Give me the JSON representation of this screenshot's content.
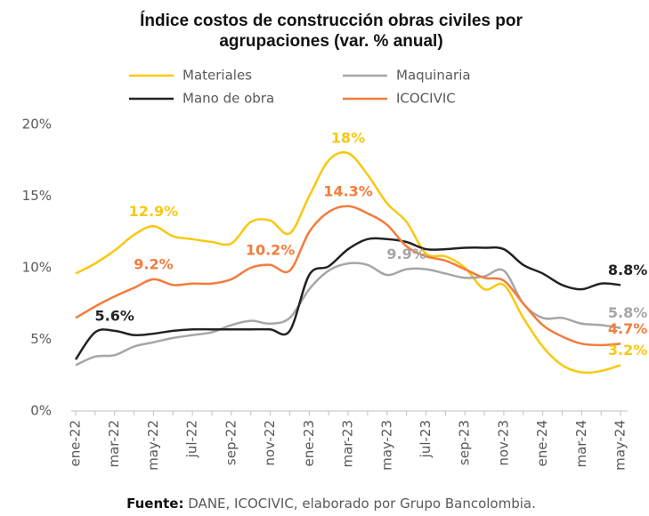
{
  "chart_data": {
    "type": "line",
    "title": [
      "Índice costos de construcción obras civiles por",
      "agrupaciones (var. % anual)"
    ],
    "categories": [
      "ene-22",
      null,
      "mar-22",
      null,
      "may-22",
      null,
      "jul-22",
      null,
      "sep-22",
      null,
      "nov-22",
      null,
      "ene-23",
      null,
      "mar-23",
      null,
      "may-23",
      null,
      "jul-23",
      null,
      "sep-23",
      null,
      "nov-23",
      null,
      "ene-24",
      null,
      "mar-24",
      null,
      "may-24"
    ],
    "series": [
      {
        "name": "Materiales",
        "color": "#f9c80e",
        "values": [
          9.6,
          10.3,
          11.2,
          12.3,
          12.9,
          12.2,
          12.0,
          11.8,
          11.7,
          13.2,
          13.3,
          12.4,
          15.0,
          17.5,
          18,
          16.5,
          14.5,
          13.2,
          11.0,
          10.8,
          10.0,
          8.5,
          8.8,
          6.5,
          4.5,
          3.2,
          2.7,
          2.8,
          3.2
        ],
        "value_labels": [
          null,
          null,
          null,
          null,
          "12.9%",
          null,
          null,
          null,
          null,
          null,
          null,
          null,
          null,
          null,
          "18%",
          null,
          null,
          null,
          null,
          null,
          null,
          null,
          null,
          null,
          null,
          null,
          null,
          null,
          "3.2%"
        ]
      },
      {
        "name": "Maquinaria",
        "color": "#a6a6a6",
        "values": [
          3.2,
          3.8,
          3.9,
          4.5,
          4.8,
          5.1,
          5.3,
          5.5,
          6.0,
          6.3,
          6.1,
          6.5,
          8.5,
          9.8,
          10.3,
          10.2,
          9.5,
          9.9,
          9.9,
          9.6,
          9.3,
          9.4,
          9.8,
          7.5,
          6.5,
          6.5,
          6.1,
          6.0,
          5.8
        ],
        "value_labels": [
          null,
          null,
          null,
          null,
          null,
          null,
          null,
          null,
          null,
          null,
          null,
          null,
          null,
          null,
          null,
          null,
          null,
          "9.9%",
          null,
          null,
          null,
          null,
          null,
          null,
          null,
          null,
          null,
          null,
          "5.8%"
        ]
      },
      {
        "name": "Mano de obra",
        "color": "#222222",
        "values": [
          3.6,
          5.5,
          5.6,
          5.3,
          5.4,
          5.6,
          5.7,
          5.7,
          5.7,
          5.7,
          5.7,
          5.6,
          9.5,
          10.1,
          11.3,
          12.0,
          12.0,
          11.8,
          11.3,
          11.3,
          11.4,
          11.4,
          11.3,
          10.2,
          9.6,
          8.8,
          8.5,
          8.9,
          8.8
        ],
        "value_labels": [
          null,
          null,
          "5.6%",
          null,
          null,
          null,
          null,
          null,
          null,
          null,
          null,
          null,
          null,
          null,
          null,
          null,
          null,
          null,
          null,
          null,
          null,
          null,
          null,
          null,
          null,
          null,
          null,
          null,
          "8.8%"
        ]
      },
      {
        "name": "ICOCIVIC",
        "color": "#f47c3c",
        "values": [
          6.5,
          7.3,
          8.0,
          8.6,
          9.2,
          8.8,
          8.9,
          8.9,
          9.2,
          10.0,
          10.2,
          9.8,
          12.5,
          13.9,
          14.3,
          13.8,
          13.0,
          11.5,
          10.8,
          10.5,
          9.9,
          9.3,
          9.1,
          7.5,
          6.0,
          5.2,
          4.7,
          4.6,
          4.7
        ],
        "value_labels": [
          null,
          null,
          null,
          null,
          "9.2%",
          null,
          null,
          null,
          null,
          null,
          "10.2%",
          null,
          null,
          null,
          "14.3%",
          null,
          null,
          null,
          null,
          null,
          null,
          null,
          null,
          null,
          null,
          null,
          null,
          null,
          "4.7%"
        ]
      }
    ],
    "ylim": [
      0,
      20
    ],
    "yticks": [
      {
        "value": 0,
        "label": "0%"
      },
      {
        "value": 5,
        "label": "5%"
      },
      {
        "value": 10,
        "label": "10%"
      },
      {
        "value": 15,
        "label": "15%"
      },
      {
        "value": 20,
        "label": "20%"
      }
    ],
    "source_label": "Fuente:",
    "source": "DANE, ICOCIVIC, elaborado por Grupo Bancolombia."
  }
}
